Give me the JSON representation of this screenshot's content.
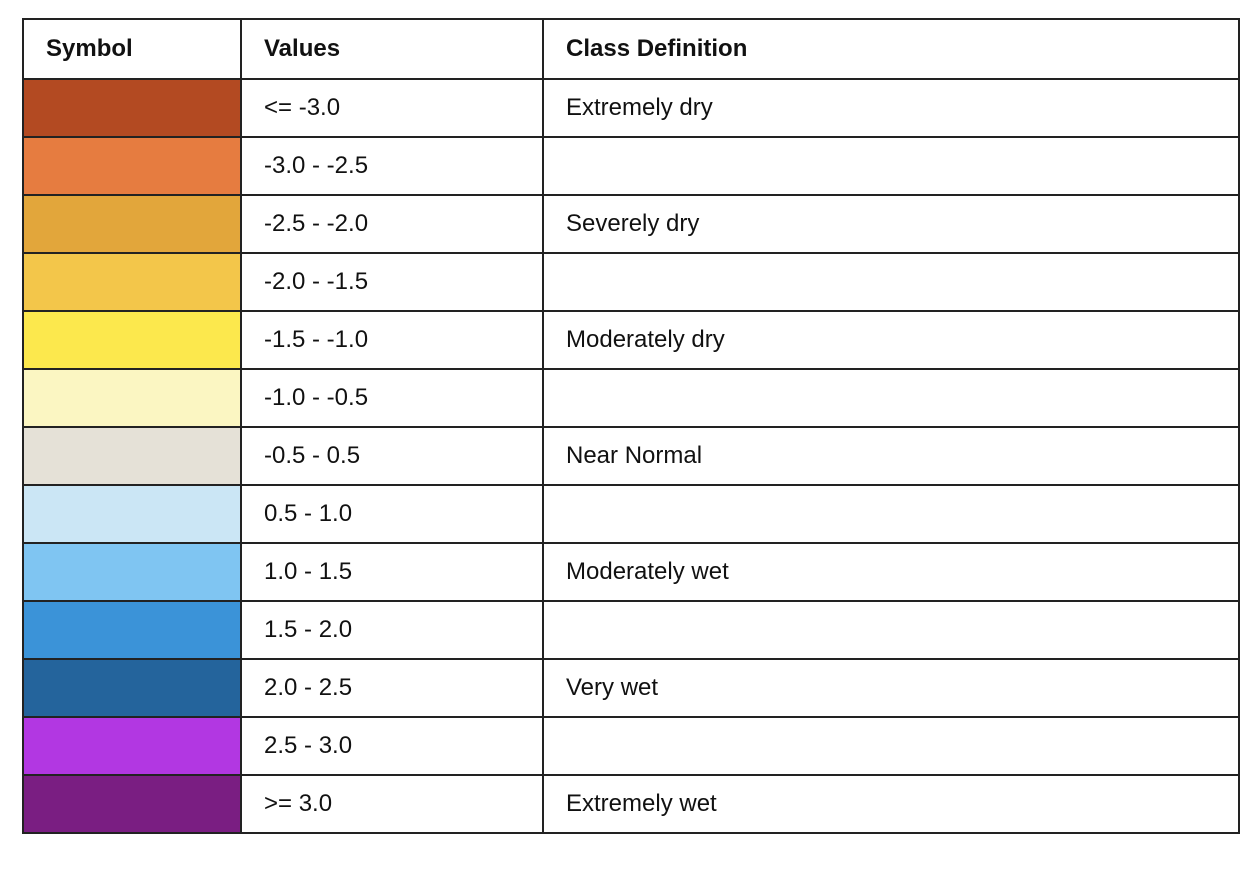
{
  "table": {
    "headers": {
      "symbol": "Symbol",
      "values": "Values",
      "class_definition": "Class Definition"
    },
    "rows": [
      {
        "color": "#b34a22",
        "value": "<= -3.0",
        "class": "Extremely dry"
      },
      {
        "color": "#e67c40",
        "value": "-3.0 - -2.5",
        "class": ""
      },
      {
        "color": "#e2a63b",
        "value": "-2.5 - -2.0",
        "class": "Severely dry"
      },
      {
        "color": "#f3c64a",
        "value": "-2.0 - -1.5",
        "class": ""
      },
      {
        "color": "#fce84d",
        "value": "-1.5 - -1.0",
        "class": "Moderately dry"
      },
      {
        "color": "#fbf6c2",
        "value": "-1.0 - -0.5",
        "class": ""
      },
      {
        "color": "#e5e1d7",
        "value": "-0.5 - 0.5",
        "class": "Near Normal"
      },
      {
        "color": "#cbe6f5",
        "value": "0.5 - 1.0",
        "class": ""
      },
      {
        "color": "#7fc5f2",
        "value": "1.0 - 1.5",
        "class": "Moderately wet"
      },
      {
        "color": "#3b93d8",
        "value": "1.5 - 2.0",
        "class": ""
      },
      {
        "color": "#24649c",
        "value": "2.0 - 2.5",
        "class": "Very wet"
      },
      {
        "color": "#b237e2",
        "value": "2.5 - 3.0",
        "class": ""
      },
      {
        "color": "#7a1e82",
        "value": ">= 3.0",
        "class": "Extremely wet"
      }
    ]
  }
}
